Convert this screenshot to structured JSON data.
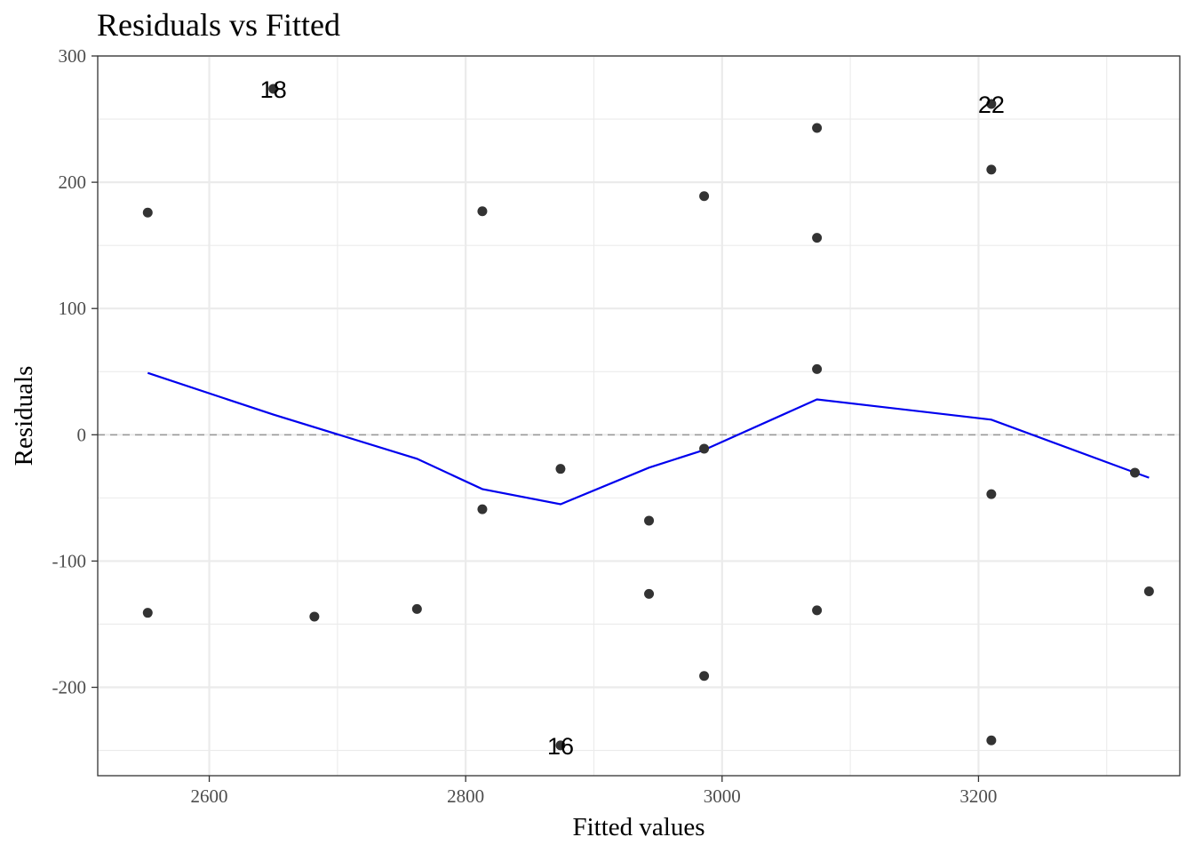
{
  "chart_data": {
    "type": "scatter",
    "title": "Residuals vs Fitted",
    "xlabel": "Fitted values",
    "ylabel": "Residuals",
    "xlim": [
      2513,
      3357
    ],
    "ylim": [
      -270,
      300
    ],
    "x_ticks": [
      2600,
      2800,
      3000,
      3200
    ],
    "y_ticks": [
      -200,
      -100,
      0,
      100,
      200,
      300
    ],
    "grid": true,
    "reference_line": {
      "y": 0,
      "style": "dashed",
      "color": "#999999"
    },
    "point_color": "#333333",
    "smooth_color": "#0000ee",
    "points": [
      {
        "x": 2552,
        "y": 176
      },
      {
        "x": 2552,
        "y": -141
      },
      {
        "x": 2650,
        "y": 274,
        "label": "18"
      },
      {
        "x": 2682,
        "y": -144
      },
      {
        "x": 2762,
        "y": -138
      },
      {
        "x": 2813,
        "y": 177
      },
      {
        "x": 2813,
        "y": -59
      },
      {
        "x": 2874,
        "y": -27
      },
      {
        "x": 2874,
        "y": -246,
        "label": "16"
      },
      {
        "x": 2943,
        "y": -68
      },
      {
        "x": 2943,
        "y": -126
      },
      {
        "x": 2986,
        "y": 189
      },
      {
        "x": 2986,
        "y": -11
      },
      {
        "x": 2986,
        "y": -191
      },
      {
        "x": 3074,
        "y": 243
      },
      {
        "x": 3074,
        "y": 156
      },
      {
        "x": 3074,
        "y": 52
      },
      {
        "x": 3074,
        "y": -139
      },
      {
        "x": 3210,
        "y": 262,
        "label": "22"
      },
      {
        "x": 3210,
        "y": 210
      },
      {
        "x": 3210,
        "y": -47
      },
      {
        "x": 3210,
        "y": -242
      },
      {
        "x": 3322,
        "y": -30
      },
      {
        "x": 3333,
        "y": -124
      }
    ],
    "smooth_line": [
      {
        "x": 2552,
        "y": 49
      },
      {
        "x": 2650,
        "y": 16
      },
      {
        "x": 2762,
        "y": -19
      },
      {
        "x": 2813,
        "y": -43
      },
      {
        "x": 2874,
        "y": -55
      },
      {
        "x": 2943,
        "y": -26
      },
      {
        "x": 2986,
        "y": -12
      },
      {
        "x": 3074,
        "y": 28
      },
      {
        "x": 3210,
        "y": 12
      },
      {
        "x": 3322,
        "y": -30
      },
      {
        "x": 3333,
        "y": -34
      }
    ]
  }
}
